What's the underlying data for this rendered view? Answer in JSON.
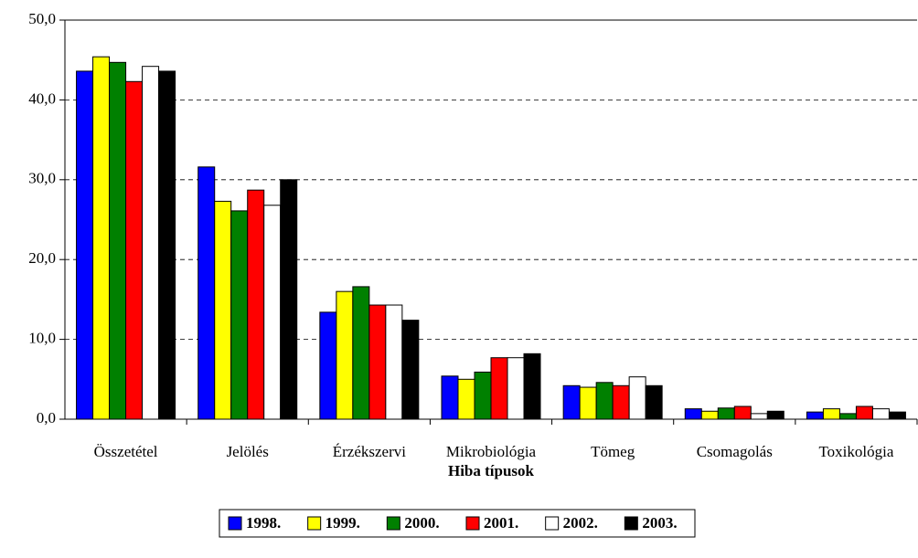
{
  "chart_data": {
    "type": "bar",
    "x_label": "Hiba típusok",
    "categories": [
      "Összetétel",
      "Jelölés",
      "Érzékszervi",
      "Mikrobiológia",
      "Tömeg",
      "Csomagolás",
      "Toxikológia"
    ],
    "series": [
      {
        "name": "1998.",
        "color": "#0000ff",
        "values": [
          43.6,
          31.6,
          13.4,
          5.4,
          4.2,
          1.3,
          0.9
        ]
      },
      {
        "name": "1999.",
        "color": "#ffff00",
        "values": [
          45.4,
          27.3,
          16.0,
          5.0,
          4.0,
          1.0,
          1.3
        ]
      },
      {
        "name": "2000.",
        "color": "#008000",
        "values": [
          44.7,
          26.1,
          16.6,
          5.9,
          4.6,
          1.4,
          0.7
        ]
      },
      {
        "name": "2001.",
        "color": "#ff0000",
        "values": [
          42.3,
          28.7,
          14.3,
          7.7,
          4.2,
          1.6,
          1.6
        ]
      },
      {
        "name": "2002.",
        "color": "#ffffff",
        "values": [
          44.2,
          26.8,
          14.3,
          7.7,
          5.3,
          0.7,
          1.3
        ]
      },
      {
        "name": "2003.",
        "color": "#000000",
        "values": [
          43.6,
          30.0,
          12.4,
          8.2,
          4.2,
          1.0,
          0.9
        ]
      }
    ],
    "ylim": [
      0,
      50
    ],
    "yticks": [
      {
        "value": 0,
        "label": "0,0"
      },
      {
        "value": 10,
        "label": "10,0"
      },
      {
        "value": 20,
        "label": "20,0"
      },
      {
        "value": 30,
        "label": "30,0"
      },
      {
        "value": 40,
        "label": "40,0"
      },
      {
        "value": 50,
        "label": "50,0"
      }
    ],
    "grid": true,
    "legend": "bottom"
  }
}
